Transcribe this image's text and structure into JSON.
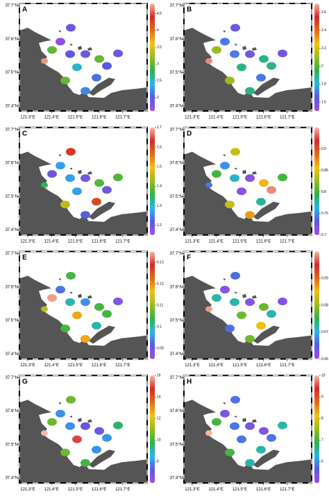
{
  "chart_data": [
    {
      "type": "map",
      "title": "A",
      "values": [
        1.9,
        1.7,
        3.0,
        2.0,
        1.9,
        3.0,
        1.9,
        4.7,
        2.5,
        2.0,
        2.1,
        3.0,
        2.2
      ],
      "clim": [
        1.6,
        4.8
      ],
      "cticks": [
        2,
        2.5,
        3,
        3.5,
        4,
        4.5
      ],
      "colormap": [
        "#a24ee0",
        "#5a5ae0",
        "#29b6e8",
        "#2db34a",
        "#9abb1a",
        "#f2c012",
        "#e06b1a",
        "#d42a2a",
        "#f4b8a0"
      ],
      "xticks": [
        {
          "value": 121.3,
          "label": "121.3°E"
        },
        {
          "value": 121.4,
          "label": "121.4°E"
        },
        {
          "value": 121.5,
          "label": "121.5°E"
        },
        {
          "value": 121.6,
          "label": "121.6°E"
        },
        {
          "value": 121.7,
          "label": "121.7°E"
        }
      ],
      "yticks": [
        {
          "value": 37.7,
          "label": "37.7°N"
        },
        {
          "value": 37.6,
          "label": "37.6°N"
        },
        {
          "value": 37.5,
          "label": "37.5°N"
        },
        {
          "value": 37.4,
          "label": "37.4°N"
        }
      ]
    },
    {
      "type": "map",
      "title": "B",
      "values": [
        1.6,
        1.7,
        2.1,
        1.7,
        1.6,
        1.9,
        1.6,
        2.65,
        1.9,
        1.9,
        1.7,
        2.1,
        1.9
      ],
      "clim": [
        1.5,
        2.7
      ],
      "cticks": [
        1.6,
        1.8,
        2,
        2.2,
        2.4,
        2.6
      ],
      "colormap": [
        "#a24ee0",
        "#5a5ae0",
        "#29b6e8",
        "#2db34a",
        "#9abb1a",
        "#f2c012",
        "#e06b1a",
        "#d42a2a",
        "#f4b8a0"
      ],
      "xticks": [
        {
          "value": 121.3,
          "label": "121.3°E"
        },
        {
          "value": 121.4,
          "label": "121.4°E"
        },
        {
          "value": 121.5,
          "label": "121.5°E"
        },
        {
          "value": 121.6,
          "label": "121.6°E"
        },
        {
          "value": 121.7,
          "label": "121.7°E"
        }
      ],
      "yticks": [
        {
          "value": 37.7,
          "label": "37.7°N"
        },
        {
          "value": 37.6,
          "label": "37.6°N"
        },
        {
          "value": 37.5,
          "label": "37.5°N"
        },
        {
          "value": 37.4,
          "label": "37.4°N"
        }
      ]
    },
    {
      "type": "map",
      "title": "C",
      "values": [
        1.62,
        1.27,
        1.2,
        1.27,
        1.2,
        1.38,
        1.38,
        1.35,
        1.27,
        1.2,
        1.6,
        1.45,
        1.22
      ],
      "clim": [
        1.15,
        1.7
      ],
      "cticks": [
        1.2,
        1.3,
        1.4,
        1.5,
        1.6,
        1.7
      ],
      "colormap": [
        "#a24ee0",
        "#5a5ae0",
        "#29b6e8",
        "#2db34a",
        "#9abb1a",
        "#f2c012",
        "#e06b1a",
        "#d42a2a",
        "#f4b8a0"
      ],
      "xticks": [
        {
          "value": 121.3,
          "label": "121.3°E"
        },
        {
          "value": 121.4,
          "label": "121.4°E"
        },
        {
          "value": 121.5,
          "label": "121.5°E"
        },
        {
          "value": 121.6,
          "label": "121.6°E"
        },
        {
          "value": 121.7,
          "label": "121.7°E"
        }
      ],
      "yticks": [
        {
          "value": 37.7,
          "label": "37.7°N"
        },
        {
          "value": 37.6,
          "label": "37.6°N"
        },
        {
          "value": 37.5,
          "label": "37.5°N"
        },
        {
          "value": 37.4,
          "label": "37.4°N"
        }
      ]
    },
    {
      "type": "map",
      "title": "D",
      "values": [
        0.84,
        0.75,
        0.8,
        0.77,
        0.71,
        0.86,
        0.8,
        0.74,
        0.71,
        0.94,
        0.78,
        0.84,
        0.87
      ],
      "clim": [
        0.7,
        0.95
      ],
      "cticks": [
        0.7,
        0.75,
        0.8,
        0.85,
        0.9
      ],
      "colormap": [
        "#a24ee0",
        "#5a5ae0",
        "#29b6e8",
        "#2db34a",
        "#9abb1a",
        "#f2c012",
        "#e06b1a",
        "#d42a2a",
        "#f4b8a0"
      ],
      "xticks": [
        {
          "value": 121.3,
          "label": "121.3°E"
        },
        {
          "value": 121.4,
          "label": "121.4°E"
        },
        {
          "value": 121.5,
          "label": "121.5°E"
        },
        {
          "value": 121.6,
          "label": "121.6°E"
        },
        {
          "value": 121.7,
          "label": "121.7°E"
        }
      ],
      "yticks": [
        {
          "value": 37.7,
          "label": "37.7°N"
        },
        {
          "value": 37.6,
          "label": "37.6°N"
        },
        {
          "value": 37.5,
          "label": "37.5°N"
        },
        {
          "value": 37.4,
          "label": "37.4°N"
        }
      ]
    },
    {
      "type": "map",
      "title": "E",
      "values": [
        0.105,
        0.093,
        0.134,
        0.1,
        0.095,
        0.105,
        0.088,
        0.112,
        0.118,
        0.105,
        0.1,
        0.105,
        0.118
      ],
      "clim": [
        0.085,
        0.135
      ],
      "cticks": [
        0.09,
        0.1,
        0.11,
        0.12,
        0.13
      ],
      "colormap": [
        "#a24ee0",
        "#5a5ae0",
        "#29b6e8",
        "#2db34a",
        "#9abb1a",
        "#f2c012",
        "#e06b1a",
        "#d42a2a",
        "#f4b8a0"
      ],
      "xticks": [
        {
          "value": 121.3,
          "label": "121.3°E"
        },
        {
          "value": 121.4,
          "label": "121.4°E"
        },
        {
          "value": 121.5,
          "label": "121.5°E"
        },
        {
          "value": 121.6,
          "label": "121.6°E"
        },
        {
          "value": 121.7,
          "label": "121.7°E"
        }
      ],
      "yticks": [
        {
          "value": 37.7,
          "label": "37.7°N"
        },
        {
          "value": 37.6,
          "label": "37.6°N"
        },
        {
          "value": 37.5,
          "label": "37.5°N"
        },
        {
          "value": 37.4,
          "label": "37.4°N"
        }
      ]
    },
    {
      "type": "map",
      "title": "F",
      "values": [
        0.066,
        0.062,
        0.072,
        0.072,
        0.062,
        0.078,
        0.062,
        0.099,
        0.078,
        0.072,
        0.085,
        0.066,
        0.078
      ],
      "clim": [
        0.06,
        0.1
      ],
      "cticks": [
        0.06,
        0.07,
        0.08,
        0.09
      ],
      "colormap": [
        "#a24ee0",
        "#5a5ae0",
        "#29b6e8",
        "#2db34a",
        "#9abb1a",
        "#f2c012",
        "#e06b1a",
        "#d42a2a",
        "#f4b8a0"
      ],
      "xticks": [
        {
          "value": 121.3,
          "label": "121.3°E"
        },
        {
          "value": 121.4,
          "label": "121.4°E"
        },
        {
          "value": 121.5,
          "label": "121.5°E"
        },
        {
          "value": 121.6,
          "label": "121.6°E"
        },
        {
          "value": 121.7,
          "label": "121.7°E"
        }
      ],
      "yticks": [
        {
          "value": 37.7,
          "label": "37.7°N"
        },
        {
          "value": 37.6,
          "label": "37.6°N"
        },
        {
          "value": 37.5,
          "label": "37.5°N"
        },
        {
          "value": 37.4,
          "label": "37.4°N"
        }
      ]
    },
    {
      "type": "map",
      "title": "G",
      "values": [
        10.5,
        8,
        10.5,
        8,
        7,
        7,
        9.5,
        16,
        15,
        8,
        8,
        10.5,
        10
      ],
      "clim": [
        6,
        16
      ],
      "cticks": [
        8,
        10,
        12,
        14,
        16
      ],
      "colormap": [
        "#a24ee0",
        "#5a5ae0",
        "#29b6e8",
        "#2db34a",
        "#9abb1a",
        "#f2c012",
        "#e06b1a",
        "#d42a2a",
        "#f4b8a0"
      ],
      "xticks": [
        {
          "value": 121.3,
          "label": "121.3°E"
        },
        {
          "value": 121.4,
          "label": "121.4°E"
        },
        {
          "value": 121.5,
          "label": "121.5°E"
        },
        {
          "value": 121.6,
          "label": "121.6°E"
        },
        {
          "value": 121.7,
          "label": "121.7°E"
        }
      ],
      "yticks": [
        {
          "value": 37.7,
          "label": "37.7°N"
        },
        {
          "value": 37.6,
          "label": "37.6°N"
        },
        {
          "value": 37.5,
          "label": "37.5°N"
        },
        {
          "value": 37.4,
          "label": "37.4°N"
        }
      ]
    },
    {
      "type": "map",
      "title": "H",
      "values": [
        5.8,
        5.3,
        7,
        5.8,
        5.3,
        5.3,
        6.5,
        10,
        5.8,
        5.8,
        6.5,
        7,
        6.5
      ],
      "clim": [
        5,
        10
      ],
      "cticks": [
        6,
        7,
        8,
        9,
        10
      ],
      "colormap": [
        "#a24ee0",
        "#5a5ae0",
        "#29b6e8",
        "#2db34a",
        "#9abb1a",
        "#f2c012",
        "#e06b1a",
        "#d42a2a",
        "#f4b8a0"
      ],
      "xticks": [
        {
          "value": 121.3,
          "label": "121.3°E"
        },
        {
          "value": 121.4,
          "label": "121.4°E"
        },
        {
          "value": 121.5,
          "label": "121.5°E"
        },
        {
          "value": 121.6,
          "label": "121.6°E"
        },
        {
          "value": 121.7,
          "label": "121.7°E"
        }
      ],
      "yticks": [
        {
          "value": 37.7,
          "label": "37.7°N"
        },
        {
          "value": 37.6,
          "label": "37.6°N"
        },
        {
          "value": 37.5,
          "label": "37.5°N"
        },
        {
          "value": 37.4,
          "label": "37.4°N"
        }
      ]
    }
  ]
}
